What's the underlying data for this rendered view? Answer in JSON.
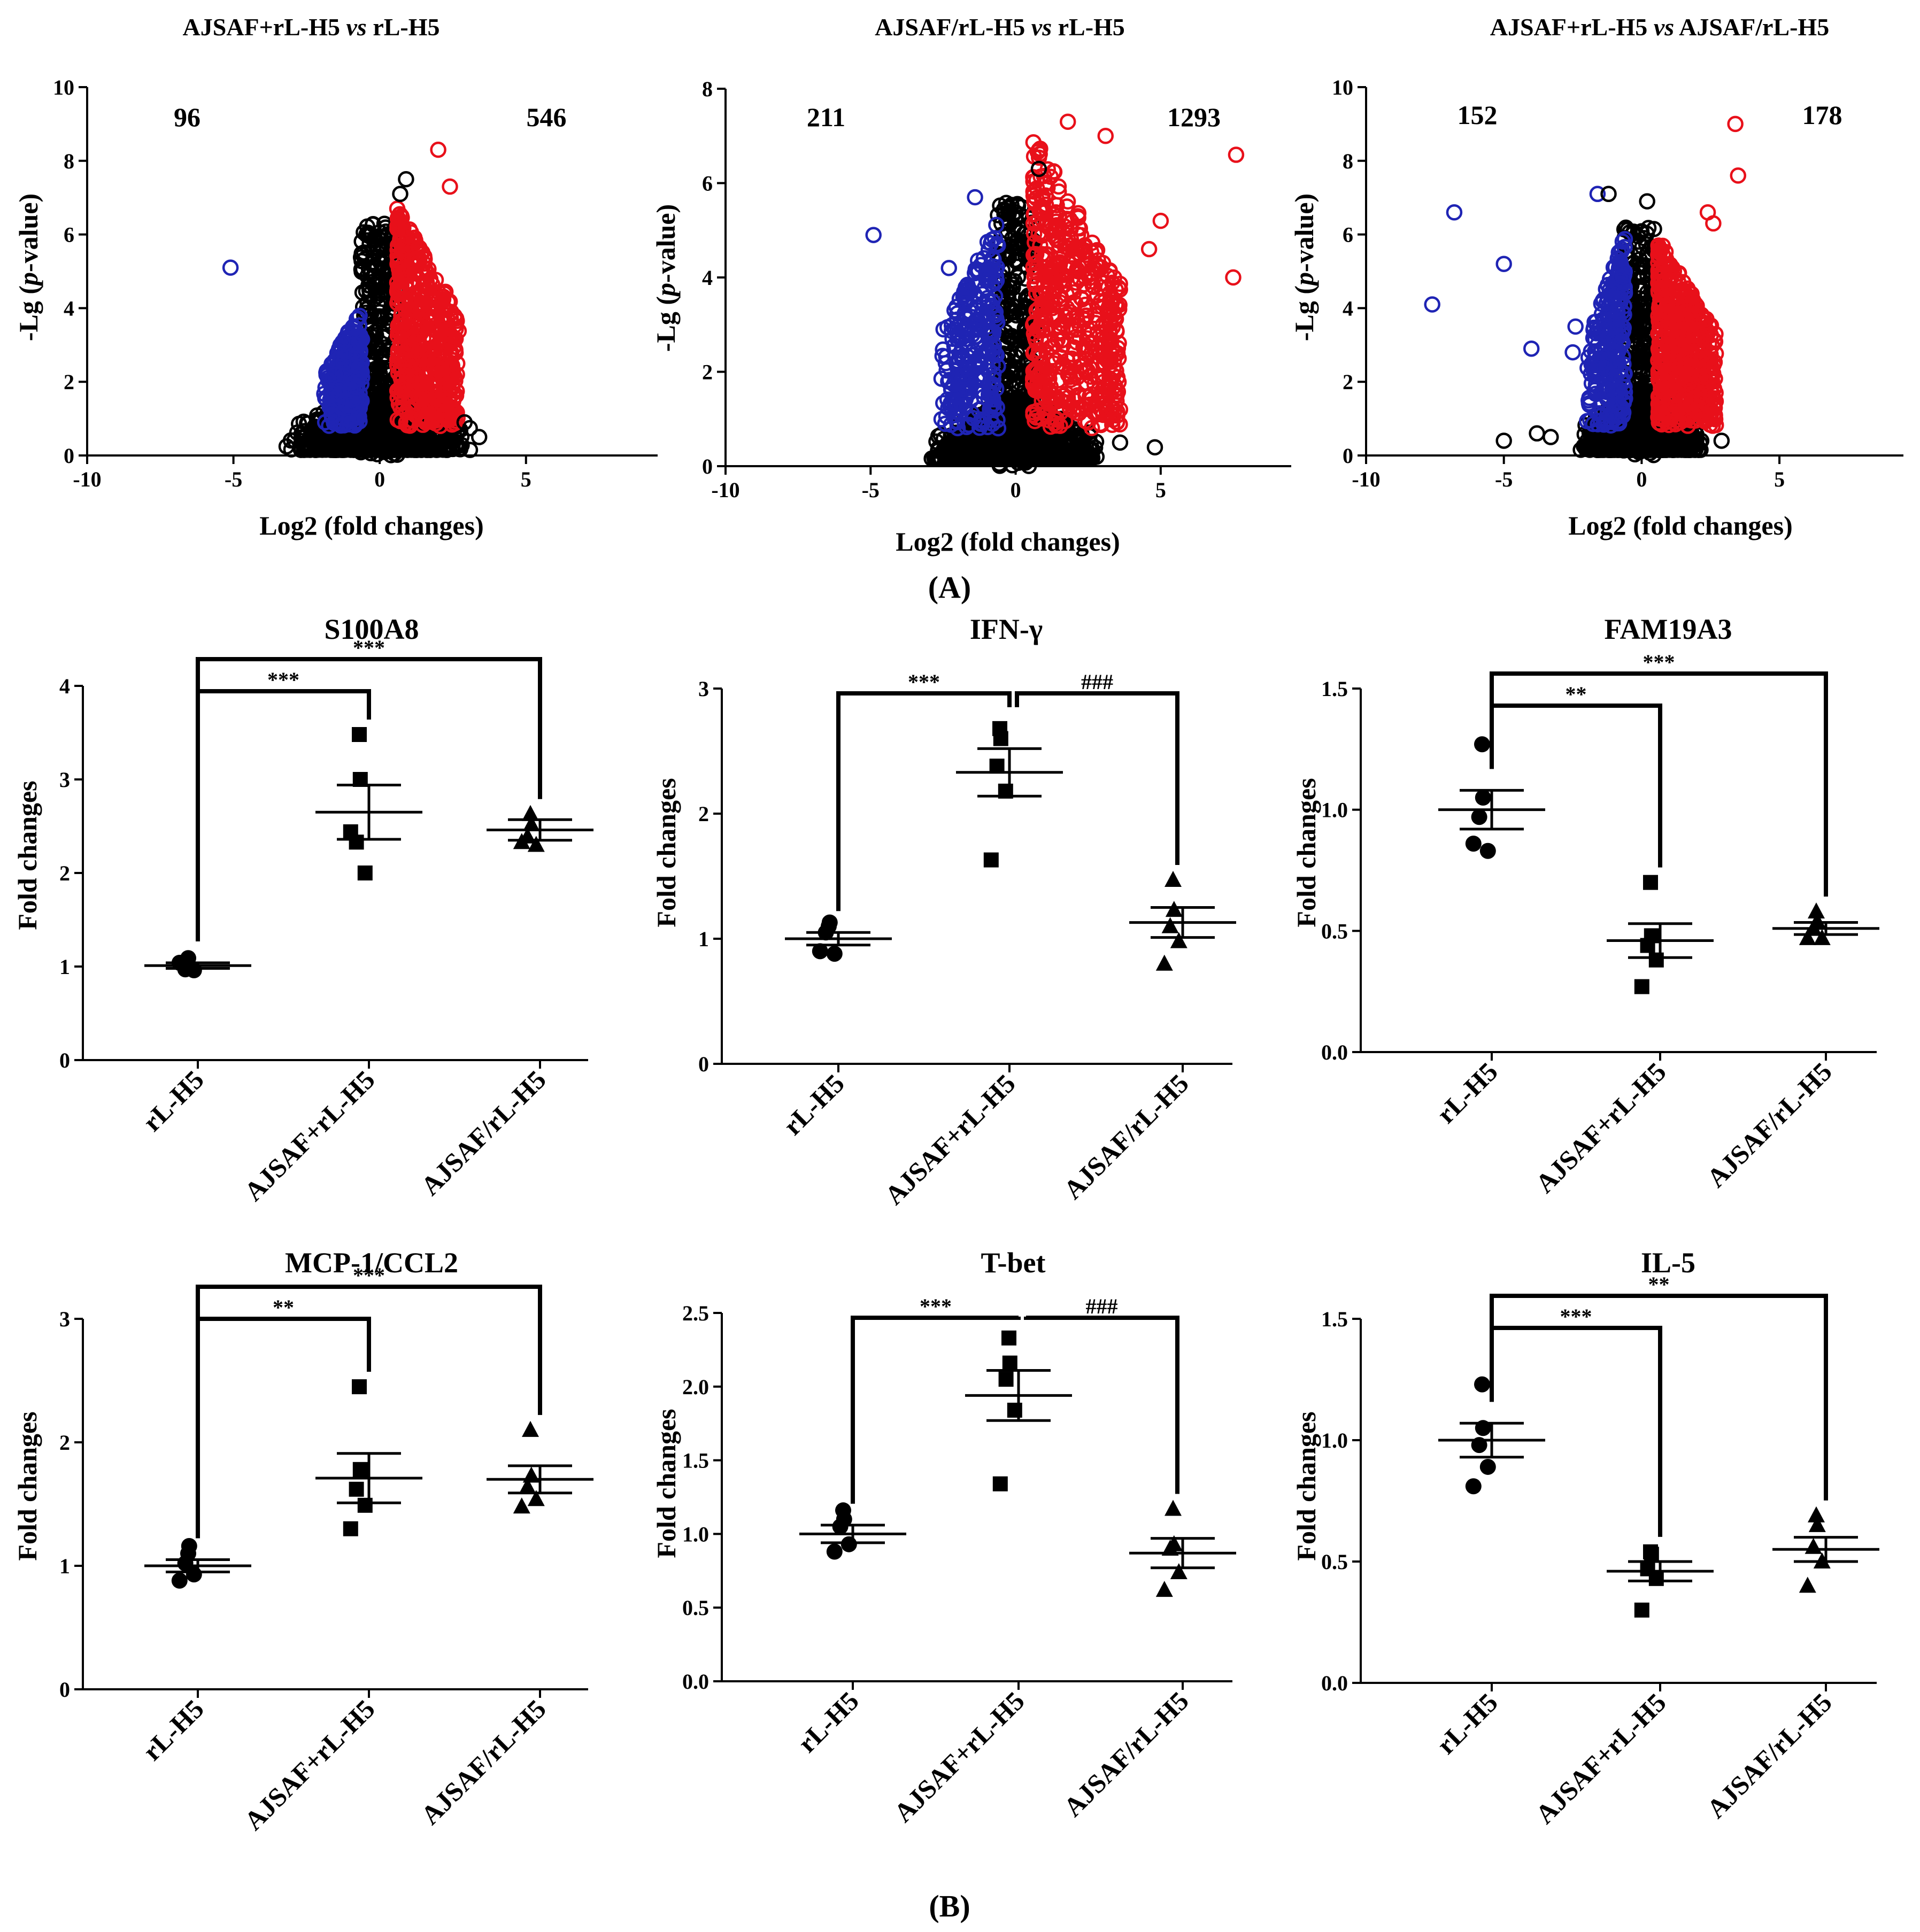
{
  "panel_labels": {
    "a": "(A)",
    "b": "(B)"
  },
  "colors": {
    "up": "#e8101a",
    "down": "#1f24b4",
    "ns": "#000000"
  },
  "chart_data": [
    {
      "type": "scatter",
      "id": "v1",
      "title_parts": [
        "AJSAF+rL-H5 ",
        "vs",
        " rL-H5"
      ],
      "xlabel": "Log2 (fold changes)",
      "ylabel_parts": [
        "-Lg (",
        "p",
        "-value)"
      ],
      "xlim": [
        -10,
        9.5
      ],
      "ylim": [
        0,
        10
      ],
      "xticks": [
        -10,
        -5,
        0,
        5
      ],
      "yticks": [
        0,
        2,
        4,
        6,
        8,
        10
      ],
      "down_count": "96",
      "up_count": "546",
      "outliers": [
        {
          "x": -5.1,
          "y": 5.1,
          "group": "down"
        },
        {
          "x": 2.0,
          "y": 8.3,
          "group": "up"
        },
        {
          "x": 2.4,
          "y": 7.3,
          "group": "up"
        },
        {
          "x": 0.9,
          "y": 7.5,
          "group": "ns"
        },
        {
          "x": 0.7,
          "y": 7.1,
          "group": "ns"
        },
        {
          "x": 3.4,
          "y": 0.5,
          "group": "ns"
        },
        {
          "x": 2.9,
          "y": 0.9,
          "group": "ns"
        }
      ],
      "clusters": {
        "down": {
          "x": [
            -1.9,
            -0.6
          ],
          "ymax": 4.0
        },
        "up": {
          "x": [
            0.6,
            2.7
          ],
          "ymax": 6.8
        },
        "ns": {
          "x": [
            -3.2,
            3.2
          ],
          "ymax": 6.3
        }
      }
    },
    {
      "type": "scatter",
      "id": "v2",
      "title_parts": [
        "AJSAF/rL-H5 ",
        "vs",
        " rL-H5"
      ],
      "xlabel": "Log2 (fold changes)",
      "ylabel_parts": [
        "-Lg (",
        "p",
        "-value)"
      ],
      "xlim": [
        -10,
        9.5
      ],
      "ylim": [
        0,
        8
      ],
      "xticks": [
        -10,
        -5,
        0,
        5
      ],
      "yticks": [
        0,
        2,
        4,
        6,
        8
      ],
      "down_count": "211",
      "up_count": "1293",
      "outliers": [
        {
          "x": -4.9,
          "y": 4.9,
          "group": "down"
        },
        {
          "x": -2.3,
          "y": 4.2,
          "group": "down"
        },
        {
          "x": -1.4,
          "y": 5.7,
          "group": "down"
        },
        {
          "x": 7.6,
          "y": 6.6,
          "group": "up"
        },
        {
          "x": 7.5,
          "y": 4.0,
          "group": "up"
        },
        {
          "x": 5.0,
          "y": 5.2,
          "group": "up"
        },
        {
          "x": 4.6,
          "y": 4.6,
          "group": "up"
        },
        {
          "x": 1.8,
          "y": 7.3,
          "group": "up"
        },
        {
          "x": 3.1,
          "y": 7.0,
          "group": "up"
        },
        {
          "x": 0.8,
          "y": 6.3,
          "group": "ns"
        },
        {
          "x": 4.8,
          "y": 0.4,
          "group": "ns"
        },
        {
          "x": 3.6,
          "y": 0.5,
          "group": "ns"
        }
      ],
      "clusters": {
        "down": {
          "x": [
            -2.6,
            -0.6
          ],
          "ymax": 5.2
        },
        "up": {
          "x": [
            0.6,
            3.6
          ],
          "ymax": 7.0
        },
        "ns": {
          "x": [
            -3.0,
            3.0
          ],
          "ymax": 5.6
        }
      }
    },
    {
      "type": "scatter",
      "id": "v3",
      "title_parts": [
        "AJSAF+rL-H5 ",
        "vs",
        " AJSAF/rL-H5"
      ],
      "xlabel": "Log2 (fold changes)",
      "ylabel_parts": [
        "-Lg (",
        "p",
        "-value)"
      ],
      "xlim": [
        -10,
        9.5
      ],
      "ylim": [
        0,
        10
      ],
      "xticks": [
        -10,
        -5,
        0,
        5
      ],
      "yticks": [
        0,
        2,
        4,
        6,
        8,
        10
      ],
      "down_count": "152",
      "up_count": "178",
      "outliers": [
        {
          "x": -7.6,
          "y": 4.1,
          "group": "down"
        },
        {
          "x": -6.8,
          "y": 6.6,
          "group": "down"
        },
        {
          "x": -5.0,
          "y": 5.2,
          "group": "down"
        },
        {
          "x": -4.0,
          "y": 2.9,
          "group": "down"
        },
        {
          "x": -2.4,
          "y": 3.5,
          "group": "down"
        },
        {
          "x": -2.5,
          "y": 2.8,
          "group": "down"
        },
        {
          "x": -1.6,
          "y": 7.1,
          "group": "down"
        },
        {
          "x": 3.4,
          "y": 9.0,
          "group": "up"
        },
        {
          "x": 3.5,
          "y": 7.6,
          "group": "up"
        },
        {
          "x": 2.4,
          "y": 6.6,
          "group": "up"
        },
        {
          "x": 2.6,
          "y": 6.3,
          "group": "up"
        },
        {
          "x": -1.2,
          "y": 7.1,
          "group": "ns"
        },
        {
          "x": 0.2,
          "y": 6.9,
          "group": "ns"
        },
        {
          "x": -5.0,
          "y": 0.4,
          "group": "ns"
        },
        {
          "x": -3.8,
          "y": 0.6,
          "group": "ns"
        },
        {
          "x": -3.3,
          "y": 0.5,
          "group": "ns"
        },
        {
          "x": 2.9,
          "y": 0.4,
          "group": "ns"
        }
      ],
      "clusters": {
        "down": {
          "x": [
            -2.0,
            -0.6
          ],
          "ymax": 6.0
        },
        "up": {
          "x": [
            0.6,
            2.7
          ],
          "ymax": 5.9
        },
        "ns": {
          "x": [
            -2.3,
            2.3
          ],
          "ymax": 6.2
        }
      }
    },
    {
      "type": "scatter",
      "subtype": "dot-plot",
      "id": "s100a8",
      "title": "S100A8",
      "ylabel": "Fold changes",
      "categories": [
        "rL-H5",
        "AJSAF+rL-H5",
        "AJSAF/rL-H5"
      ],
      "markers": [
        "circle",
        "square",
        "triangle"
      ],
      "ylim": [
        0,
        4
      ],
      "yticks": [
        "0",
        "1",
        "2",
        "3",
        "4"
      ],
      "points": [
        [
          1.09,
          0.99,
          0.97,
          0.96,
          1.04
        ],
        [
          3.48,
          3.0,
          2.33,
          2.0,
          2.44
        ],
        [
          2.63,
          2.52,
          2.39,
          2.3,
          2.33
        ]
      ],
      "mean": [
        1.01,
        2.65,
        2.46
      ],
      "sem": [
        0.03,
        0.29,
        0.11
      ],
      "sig": [
        {
          "from": 0,
          "to": 1,
          "label": "***",
          "level": 0
        },
        {
          "from": 0,
          "to": 2,
          "label": "***",
          "level": 1
        }
      ]
    },
    {
      "type": "scatter",
      "subtype": "dot-plot",
      "id": "ifng",
      "title": "IFN-γ",
      "ylabel": "Fold changes",
      "categories": [
        "rL-H5",
        "AJSAF+rL-H5",
        "AJSAF/rL-H5"
      ],
      "markers": [
        "circle",
        "square",
        "triangle"
      ],
      "ylim": [
        0,
        3
      ],
      "yticks": [
        "0",
        "1",
        "2",
        "3"
      ],
      "points": [
        [
          1.1,
          1.13,
          1.05,
          0.88,
          0.9
        ],
        [
          2.68,
          2.6,
          2.38,
          2.18,
          1.63
        ],
        [
          1.47,
          1.23,
          1.1,
          0.98,
          0.8
        ]
      ],
      "mean": [
        1.0,
        2.33,
        1.13
      ],
      "sem": [
        0.05,
        0.19,
        0.12
      ],
      "sig": [
        {
          "from": 0,
          "to": 1,
          "label": "***",
          "level": 0
        },
        {
          "from": 2,
          "to": 1,
          "label": "###",
          "level": 0
        }
      ]
    },
    {
      "type": "scatter",
      "subtype": "dot-plot",
      "id": "fam19a3",
      "title": "FAM19A3",
      "ylabel": "Fold changes",
      "categories": [
        "rL-H5",
        "AJSAF+rL-H5",
        "AJSAF/rL-H5"
      ],
      "markers": [
        "circle",
        "square",
        "triangle"
      ],
      "ylim": [
        0,
        1.5
      ],
      "yticks": [
        "0.0",
        "0.5",
        "1.0",
        "1.5"
      ],
      "points": [
        [
          1.27,
          1.05,
          0.97,
          0.83,
          0.86
        ],
        [
          0.7,
          0.48,
          0.44,
          0.38,
          0.27
        ],
        [
          0.58,
          0.54,
          0.51,
          0.47,
          0.47
        ]
      ],
      "mean": [
        1.0,
        0.46,
        0.51
      ],
      "sem": [
        0.08,
        0.07,
        0.025
      ],
      "sig": [
        {
          "from": 0,
          "to": 1,
          "label": "**",
          "level": 0
        },
        {
          "from": 0,
          "to": 2,
          "label": "***",
          "level": 1
        }
      ]
    },
    {
      "type": "scatter",
      "subtype": "dot-plot",
      "id": "mcp1",
      "title": "MCP-1/CCL2",
      "ylabel": "Fold changes",
      "categories": [
        "rL-H5",
        "AJSAF+rL-H5",
        "AJSAF/rL-H5"
      ],
      "markers": [
        "circle",
        "square",
        "triangle"
      ],
      "ylim": [
        0,
        3
      ],
      "yticks": [
        "0",
        "1",
        "2",
        "3"
      ],
      "points": [
        [
          1.1,
          1.16,
          1.02,
          0.93,
          0.88
        ],
        [
          2.45,
          1.78,
          1.62,
          1.49,
          1.3
        ],
        [
          2.1,
          1.73,
          1.64,
          1.54,
          1.48
        ]
      ],
      "mean": [
        1.0,
        1.71,
        1.7
      ],
      "sem": [
        0.05,
        0.2,
        0.11
      ],
      "sig": [
        {
          "from": 0,
          "to": 1,
          "label": "**",
          "level": 0
        },
        {
          "from": 0,
          "to": 2,
          "label": "***",
          "level": 1
        }
      ]
    },
    {
      "type": "scatter",
      "subtype": "dot-plot",
      "id": "tbet",
      "title": "T-bet",
      "ylabel": "Fold changes",
      "categories": [
        "rL-H5",
        "AJSAF+rL-H5",
        "AJSAF/rL-H5"
      ],
      "markers": [
        "circle",
        "square",
        "triangle"
      ],
      "ylim": [
        0,
        2.5
      ],
      "yticks": [
        "0.0",
        "0.5",
        "1.0",
        "1.5",
        "2.0",
        "2.5"
      ],
      "points": [
        [
          1.16,
          1.1,
          1.05,
          0.93,
          0.88
        ],
        [
          2.33,
          2.16,
          2.05,
          1.84,
          1.34
        ],
        [
          1.17,
          0.93,
          0.9,
          0.74,
          0.62
        ]
      ],
      "mean": [
        1.0,
        1.94,
        0.87
      ],
      "sem": [
        0.06,
        0.17,
        0.1
      ],
      "sig": [
        {
          "from": 0,
          "to": 1,
          "label": "***",
          "level": 0
        },
        {
          "from": 2,
          "to": 1,
          "label": "###",
          "level": 0
        }
      ]
    },
    {
      "type": "scatter",
      "subtype": "dot-plot",
      "id": "il5",
      "title": "IL-5",
      "ylabel": "Fold changes",
      "categories": [
        "rL-H5",
        "AJSAF+rL-H5",
        "AJSAF/rL-H5"
      ],
      "markers": [
        "circle",
        "square",
        "triangle"
      ],
      "ylim": [
        0,
        1.5
      ],
      "yticks": [
        "0.0",
        "0.5",
        "1.0",
        "1.5"
      ],
      "points": [
        [
          1.23,
          1.05,
          0.98,
          0.89,
          0.81
        ],
        [
          0.54,
          0.53,
          0.47,
          0.43,
          0.3
        ],
        [
          0.69,
          0.65,
          0.56,
          0.5,
          0.4
        ]
      ],
      "mean": [
        1.0,
        0.46,
        0.55
      ],
      "sem": [
        0.07,
        0.04,
        0.05
      ],
      "sig": [
        {
          "from": 0,
          "to": 1,
          "label": "***",
          "level": 0
        },
        {
          "from": 0,
          "to": 2,
          "label": "**",
          "level": 1
        }
      ]
    }
  ]
}
